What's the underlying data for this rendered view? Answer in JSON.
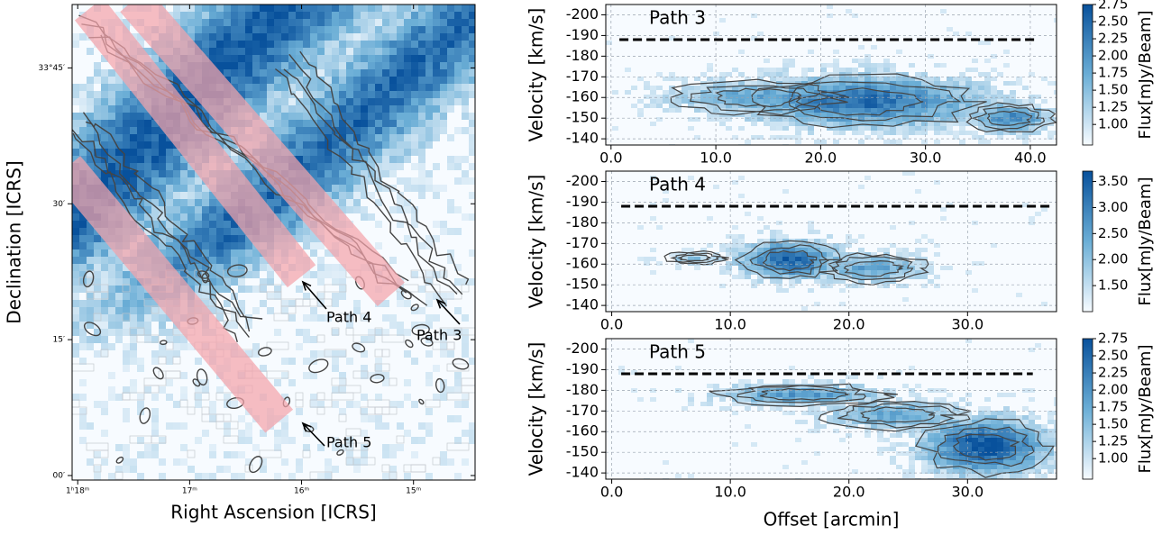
{
  "colors": {
    "map_light": "#f7fbff",
    "map_mid": "#6baed6",
    "map_dark": "#08519c",
    "path_fill": "#f4a4aa",
    "contour": "#444444",
    "dashed": "#000000",
    "grid": "#9aa4b0"
  },
  "chart_data": [
    {
      "type": "heatmap",
      "panel": "sky-map",
      "xlabel": "Right Ascension [ICRS]",
      "ylabel": "Declination [ICRS]",
      "x_ticks": [
        {
          "label": "1ʰ18ᵐ",
          "value": 18
        },
        {
          "label": "17ᵐ",
          "value": 17
        },
        {
          "label": "16ᵐ",
          "value": 16
        },
        {
          "label": "15ᵐ",
          "value": 15
        }
      ],
      "y_ticks": [
        {
          "label": "33°45′",
          "value": 45
        },
        {
          "label": "30′",
          "value": 30
        },
        {
          "label": "15′",
          "value": 15
        },
        {
          "label": "00′",
          "value": 0
        }
      ],
      "xlim": [
        18.05,
        14.45
      ],
      "ylim": [
        -0.5,
        52
      ],
      "paths": [
        {
          "label": "Path 3",
          "start": [
            17.5,
            52.5
          ],
          "end": [
            15.2,
            20.0
          ]
        },
        {
          "label": "Path 4",
          "start": [
            17.9,
            51.5
          ],
          "end": [
            16.0,
            22.0
          ]
        },
        {
          "label": "Path 5",
          "start": [
            18.1,
            34.0
          ],
          "end": [
            16.2,
            6.0
          ]
        }
      ]
    },
    {
      "type": "heatmap",
      "panel": "pv-path-3",
      "title": "Path 3",
      "xlabel": "",
      "ylabel": "Velocity [km/s]",
      "colorbar_label": "Flux[mJy/Beam]",
      "x_ticks": [
        0.0,
        10.0,
        20.0,
        30.0,
        40.0
      ],
      "xlim": [
        -0.5,
        42.5
      ],
      "y_ticks": [
        -200,
        -190,
        -180,
        -170,
        -160,
        -150,
        -140
      ],
      "ylim": [
        -205,
        -137
      ],
      "reference_velocity": -188,
      "reference_span": [
        0.8,
        40.5
      ],
      "colorbar_ticks": [
        1.0,
        1.25,
        1.5,
        1.75,
        2.0,
        2.25,
        2.5,
        2.75
      ],
      "colorbar_range": [
        0.7,
        2.75
      ],
      "emission": [
        {
          "offset": 24,
          "velocity": -158,
          "width": 22,
          "height": 24,
          "peak": 0.85
        },
        {
          "offset": 14,
          "velocity": -160,
          "width": 16,
          "height": 16,
          "peak": 0.55
        },
        {
          "offset": 38,
          "velocity": -150,
          "width": 8,
          "height": 14,
          "peak": 0.7
        }
      ]
    },
    {
      "type": "heatmap",
      "panel": "pv-path-4",
      "title": "Path 4",
      "xlabel": "",
      "ylabel": "Velocity [km/s]",
      "colorbar_label": "Flux[mJy/Beam]",
      "x_ticks": [
        0.0,
        10.0,
        20.0,
        30.0
      ],
      "xlim": [
        -0.5,
        37.5
      ],
      "y_ticks": [
        -200,
        -190,
        -180,
        -170,
        -160,
        -150,
        -140
      ],
      "ylim": [
        -205,
        -137
      ],
      "reference_velocity": -188,
      "reference_span": [
        0.8,
        37.2
      ],
      "colorbar_ticks": [
        1.5,
        2.0,
        2.5,
        3.0,
        3.5
      ],
      "colorbar_range": [
        1.0,
        3.7
      ],
      "emission": [
        {
          "offset": 15,
          "velocity": -162,
          "width": 8,
          "height": 18,
          "peak": 0.9
        },
        {
          "offset": 22,
          "velocity": -158,
          "width": 9,
          "height": 14,
          "peak": 0.55
        },
        {
          "offset": 7,
          "velocity": -163,
          "width": 5,
          "height": 6,
          "peak": 0.35
        }
      ]
    },
    {
      "type": "heatmap",
      "panel": "pv-path-5",
      "title": "Path 5",
      "xlabel": "Offset [arcmin]",
      "ylabel": "Velocity [km/s]",
      "colorbar_label": "Flux[mJy/Beam]",
      "x_ticks": [
        0.0,
        10.0,
        20.0,
        30.0
      ],
      "xlim": [
        -0.5,
        37.5
      ],
      "y_ticks": [
        -200,
        -190,
        -180,
        -170,
        -160,
        -150,
        -140
      ],
      "ylim": [
        -205,
        -137
      ],
      "reference_velocity": -188,
      "reference_span": [
        0.8,
        35.5
      ],
      "colorbar_ticks": [
        1.0,
        1.25,
        1.5,
        1.75,
        2.0,
        2.25,
        2.5,
        2.75
      ],
      "colorbar_range": [
        0.7,
        2.75
      ],
      "emission": [
        {
          "offset": 31.5,
          "velocity": -153,
          "width": 10,
          "height": 26,
          "peak": 1.0
        },
        {
          "offset": 16,
          "velocity": -178,
          "width": 14,
          "height": 10,
          "peak": 0.6
        },
        {
          "offset": 24,
          "velocity": -168,
          "width": 12,
          "height": 14,
          "peak": 0.55
        }
      ]
    }
  ]
}
